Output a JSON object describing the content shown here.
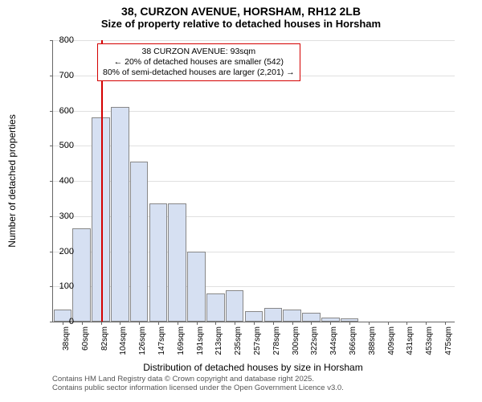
{
  "title": "38, CURZON AVENUE, HORSHAM, RH12 2LB",
  "subtitle": "Size of property relative to detached houses in Horsham",
  "chart": {
    "type": "histogram",
    "ylabel": "Number of detached properties",
    "xlabel": "Distribution of detached houses by size in Horsham",
    "ylim": [
      0,
      800
    ],
    "ytick_step": 100,
    "bar_fill": "#d6e0f2",
    "bar_border": "#888888",
    "grid_color": "#e0e0e0",
    "background_color": "#ffffff",
    "categories": [
      "38sqm",
      "60sqm",
      "82sqm",
      "104sqm",
      "126sqm",
      "147sqm",
      "169sqm",
      "191sqm",
      "213sqm",
      "235sqm",
      "257sqm",
      "278sqm",
      "300sqm",
      "322sqm",
      "344sqm",
      "366sqm",
      "388sqm",
      "409sqm",
      "431sqm",
      "453sqm",
      "475sqm"
    ],
    "values": [
      35,
      265,
      580,
      610,
      455,
      335,
      335,
      200,
      80,
      90,
      30,
      38,
      35,
      25,
      12,
      10,
      0,
      0,
      0,
      0,
      0
    ],
    "bar_width": 0.95,
    "label_fontsize": 12,
    "tick_fontsize": 10
  },
  "marker": {
    "color": "#d40000",
    "position_index": 2.5,
    "box_border": "#d40000",
    "line1": "38 CURZON AVENUE: 93sqm",
    "line2": "← 20% of detached houses are smaller (542)",
    "line3": "80% of semi-detached houses are larger (2,201) →"
  },
  "attribution": {
    "line1": "Contains HM Land Registry data © Crown copyright and database right 2025.",
    "line2": "Contains public sector information licensed under the Open Government Licence v3.0."
  }
}
